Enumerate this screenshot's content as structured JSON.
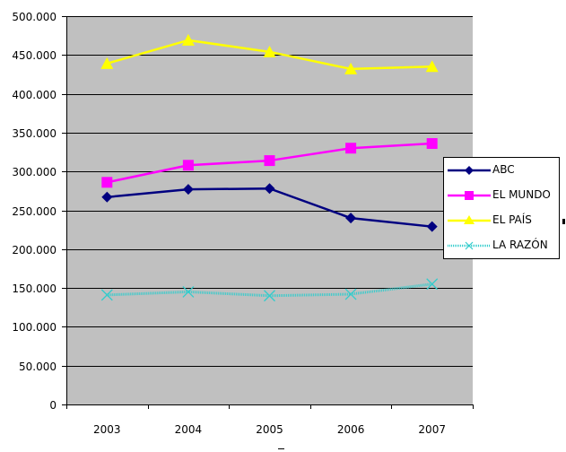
{
  "chart_data": {
    "type": "line",
    "title": "",
    "xlabel": "",
    "ylabel": "",
    "categories": [
      "2003",
      "2004",
      "2005",
      "2006",
      "2007"
    ],
    "ylim": [
      0,
      500000
    ],
    "yticks": [
      0,
      50000,
      100000,
      150000,
      200000,
      250000,
      300000,
      350000,
      400000,
      450000,
      500000
    ],
    "ytick_labels": [
      "0",
      "50.000",
      "100.000",
      "150.000",
      "200.000",
      "250.000",
      "300.000",
      "350.000",
      "400.000",
      "450.000",
      "500.000"
    ],
    "grid": true,
    "plot_background": "#C0C0C0",
    "legend_position": "right",
    "series": [
      {
        "name": "ABC",
        "color": "#000080",
        "marker": "diamond",
        "values": [
          267000,
          277000,
          278000,
          240000,
          229000
        ]
      },
      {
        "name": "EL MUNDO",
        "color": "#FF00FF",
        "marker": "square",
        "values": [
          286000,
          308000,
          314000,
          330000,
          336000
        ]
      },
      {
        "name": "EL PAÍS",
        "color": "#FFFF00",
        "marker": "triangle",
        "values": [
          439000,
          469000,
          454000,
          432000,
          435000
        ]
      },
      {
        "name": "LA RAZÓN",
        "color": "#33CCCC",
        "marker": "x",
        "values": [
          141000,
          145000,
          140000,
          142000,
          155000
        ]
      }
    ]
  },
  "legend": {
    "items": [
      {
        "label": "ABC"
      },
      {
        "label": "EL MUNDO"
      },
      {
        "label": "EL PAÍS"
      },
      {
        "label": "LA RAZÓN"
      }
    ]
  }
}
